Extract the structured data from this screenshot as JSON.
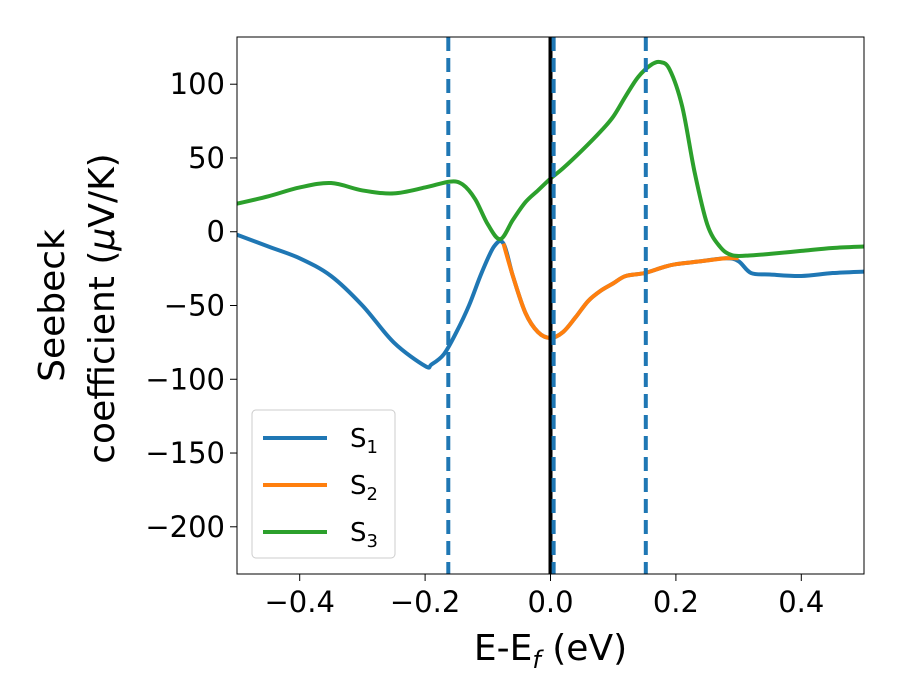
{
  "chart_data": {
    "type": "line",
    "xlabel": "E-E",
    "xlabel_sub": "f",
    "xlabel_unit": " (eV)",
    "ylabel_line1": "Seebeck",
    "ylabel_line2a": "coefficient  (",
    "ylabel_mu": "μ",
    "ylabel_line2b": "V/K)",
    "xlim": [
      -0.5,
      0.5
    ],
    "ylim": [
      -232,
      132
    ],
    "xticks": [
      -0.4,
      -0.2,
      0.0,
      0.2,
      0.4
    ],
    "xtick_labels": [
      "−0.4",
      "−0.2",
      "0.0",
      "0.2",
      "0.4"
    ],
    "yticks": [
      100,
      50,
      0,
      -50,
      -100,
      -150,
      -200
    ],
    "ytick_labels": [
      "100",
      "50",
      "0",
      "−50",
      "−100",
      "−150",
      "−200"
    ],
    "grid": false,
    "legend_position": "lower-left",
    "vertical_lines": [
      {
        "x": -0.163,
        "style": "dashed",
        "color": "#1f77b4"
      },
      {
        "x": 0.0,
        "style": "solid",
        "color": "#000000"
      },
      {
        "x": 0.005,
        "style": "dashed",
        "color": "#1f77b4"
      },
      {
        "x": 0.152,
        "style": "dashed",
        "color": "#1f77b4"
      }
    ],
    "series": [
      {
        "name": "S",
        "sub": "1",
        "color": "#1f77b4",
        "x": [
          -0.5,
          -0.45,
          -0.4,
          -0.35,
          -0.3,
          -0.25,
          -0.2,
          -0.19,
          -0.17,
          -0.15,
          -0.13,
          -0.11,
          -0.09,
          -0.075,
          -0.06,
          -0.04,
          -0.02,
          0.0,
          0.02,
          0.04,
          0.06,
          0.08,
          0.1,
          0.12,
          0.15,
          0.18,
          0.2,
          0.24,
          0.28,
          0.3,
          0.32,
          0.35,
          0.4,
          0.45,
          0.5
        ],
        "y": [
          -2,
          -10,
          -18,
          -30,
          -50,
          -75,
          -91,
          -90,
          -83,
          -68,
          -50,
          -28,
          -10,
          -8,
          -30,
          -55,
          -68,
          -72,
          -68,
          -58,
          -47,
          -40,
          -35,
          -30,
          -28,
          -24,
          -22,
          -20,
          -18,
          -20,
          -28,
          -29,
          -30,
          -28,
          -27
        ]
      },
      {
        "name": "S",
        "sub": "2",
        "color": "#ff7f0e",
        "x": [
          -0.075,
          -0.06,
          -0.04,
          -0.02,
          0.0,
          0.02,
          0.04,
          0.06,
          0.08,
          0.1,
          0.12,
          0.15,
          0.18,
          0.2,
          0.24,
          0.28,
          0.3
        ],
        "y": [
          -8,
          -30,
          -55,
          -68,
          -72,
          -68,
          -58,
          -47,
          -40,
          -35,
          -30,
          -28,
          -24,
          -22,
          -20,
          -18,
          -18
        ]
      },
      {
        "name": "S",
        "sub": "3",
        "color": "#2ca02c",
        "x": [
          -0.5,
          -0.45,
          -0.4,
          -0.35,
          -0.3,
          -0.25,
          -0.2,
          -0.16,
          -0.14,
          -0.12,
          -0.1,
          -0.08,
          -0.06,
          -0.04,
          -0.02,
          0.0,
          0.02,
          0.05,
          0.08,
          0.1,
          0.12,
          0.14,
          0.16,
          0.175,
          0.19,
          0.21,
          0.23,
          0.25,
          0.27,
          0.29,
          0.32,
          0.35,
          0.4,
          0.45,
          0.5
        ],
        "y": [
          19,
          24,
          30,
          33,
          28,
          26,
          30,
          34,
          32,
          22,
          5,
          -5,
          8,
          20,
          28,
          36,
          43,
          55,
          68,
          78,
          92,
          105,
          113,
          115,
          110,
          85,
          40,
          5,
          -10,
          -16,
          -16,
          -15,
          -13,
          -11,
          -10
        ]
      }
    ]
  }
}
